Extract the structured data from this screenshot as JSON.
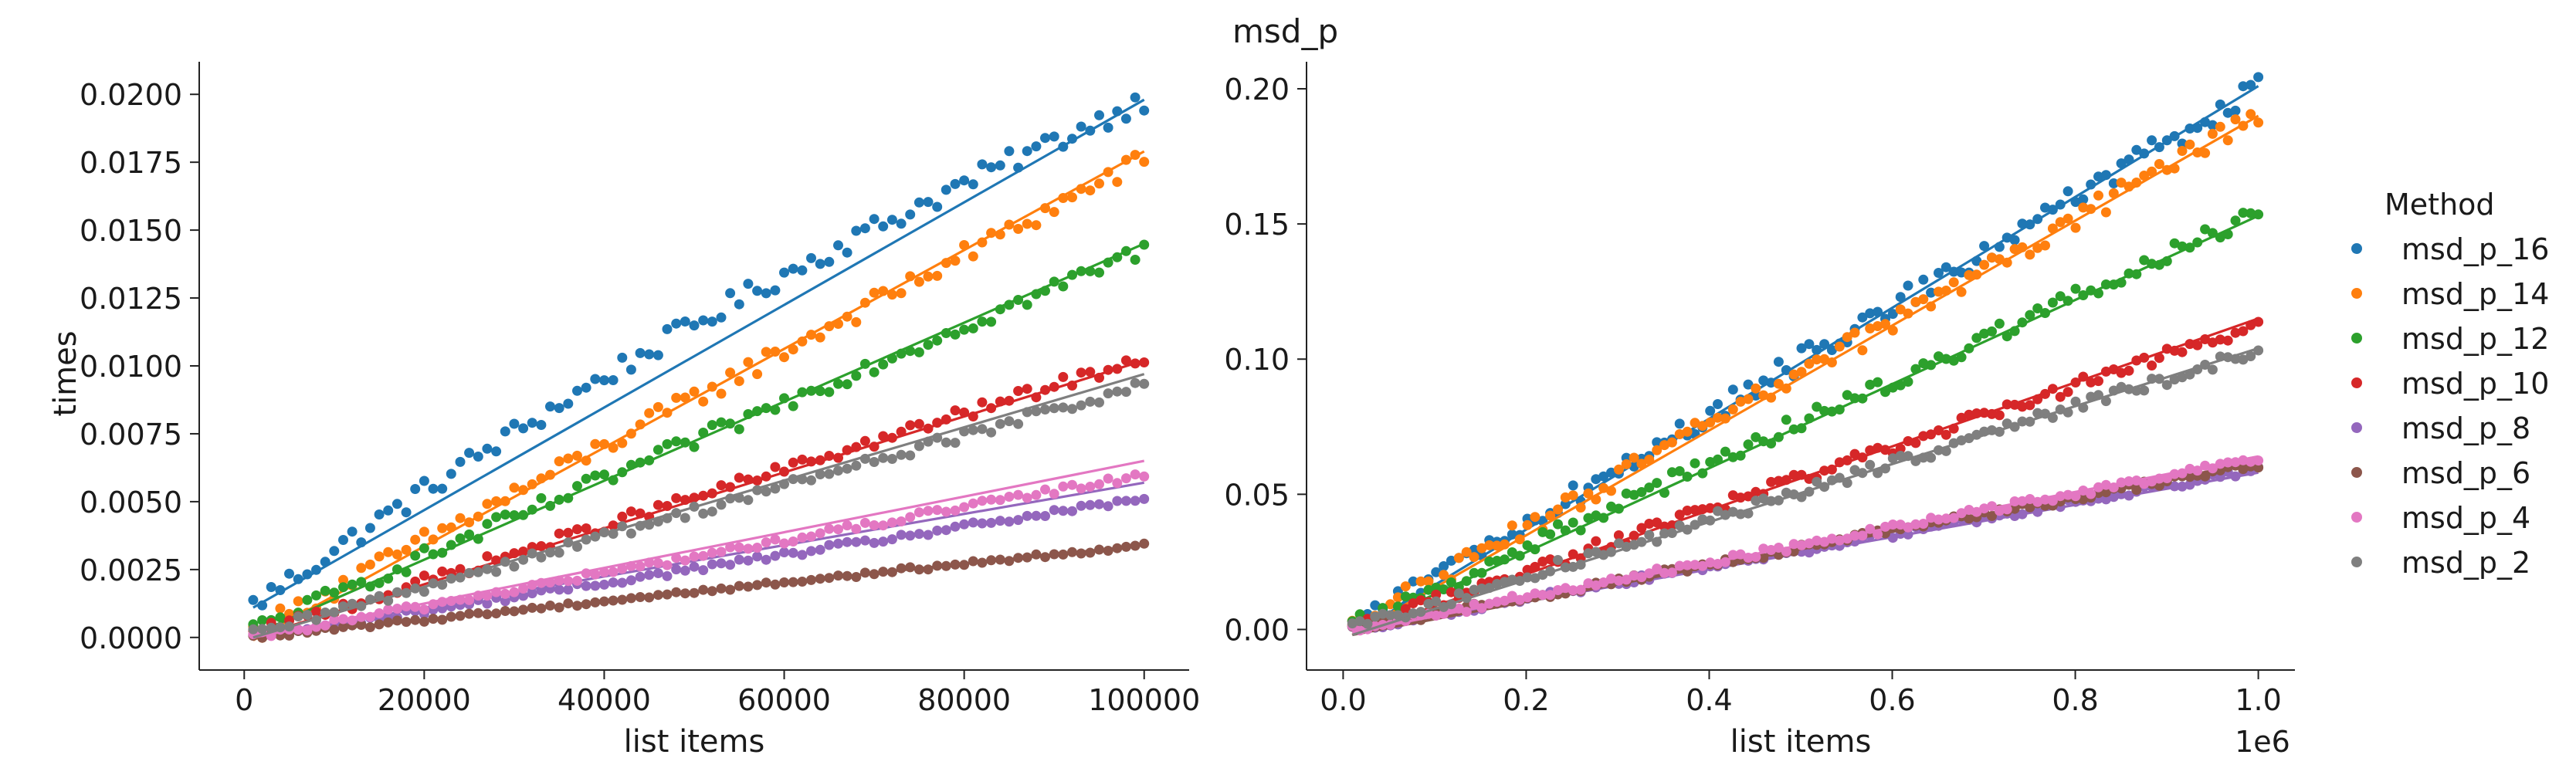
{
  "figure": {
    "title": "msd_p"
  },
  "legend": {
    "title": "Method"
  },
  "chart_data": [
    {
      "type": "scatter",
      "title": "",
      "xlabel": "list items",
      "ylabel": "times",
      "xlim": [
        -5000,
        105000
      ],
      "ylim": [
        -0.0012,
        0.0212
      ],
      "x_ticks": [
        0,
        20000,
        40000,
        60000,
        80000,
        100000
      ],
      "x_tick_labels": [
        "0",
        "20000",
        "40000",
        "60000",
        "80000",
        "100000"
      ],
      "y_ticks": [
        0,
        0.0025,
        0.005,
        0.0075,
        0.01,
        0.0125,
        0.015,
        0.0175,
        0.02
      ],
      "y_tick_labels": [
        "0.0000",
        "0.0025",
        "0.0050",
        "0.0075",
        "0.0100",
        "0.0125",
        "0.0150",
        "0.0175",
        "0.0200"
      ],
      "x_range": [
        1000,
        100000
      ],
      "grid": false,
      "series": [
        {
          "name": "msd_p_16",
          "color": "#1f77b4",
          "line_start": 0.0011,
          "line_end": 0.0198,
          "points_start": 0.0012,
          "points_end": 0.0198
        },
        {
          "name": "msd_p_14",
          "color": "#ff7f0e",
          "line_start": -0.0001,
          "line_end": 0.0179,
          "points_start": 0.0002,
          "points_end": 0.0176
        },
        {
          "name": "msd_p_12",
          "color": "#2ca02c",
          "line_start": 0.0001,
          "line_end": 0.0145,
          "points_start": 0.0003,
          "points_end": 0.0143
        },
        {
          "name": "msd_p_10",
          "color": "#d62728",
          "line_start": 0.0,
          "line_end": 0.0102,
          "points_start": 0.0001,
          "points_end": 0.0103
        },
        {
          "name": "msd_p_8",
          "color": "#9467bd",
          "line_start": 0.0,
          "line_end": 0.0057,
          "points_start": 0.0,
          "points_end": 0.0051
        },
        {
          "name": "msd_p_6",
          "color": "#8c564b",
          "line_start": 0.0,
          "line_end": 0.0034,
          "points_start": 0.0,
          "points_end": 0.0034
        },
        {
          "name": "msd_p_4",
          "color": "#e377c2",
          "line_start": 0.0,
          "line_end": 0.0065,
          "points_start": 0.0,
          "points_end": 0.006
        },
        {
          "name": "msd_p_2",
          "color": "#7f7f7f",
          "line_start": 0.0,
          "line_end": 0.0097,
          "points_start": 0.0001,
          "points_end": 0.0093
        }
      ]
    },
    {
      "type": "scatter",
      "title": "",
      "xlabel": "list items",
      "ylabel": "",
      "x_multiplier_label": "1e6",
      "xlim": [
        -0.04,
        1.04
      ],
      "ylim": [
        -0.015,
        0.21
      ],
      "x_ticks": [
        0.0,
        0.2,
        0.4,
        0.6,
        0.8,
        1.0
      ],
      "x_tick_labels": [
        "0.0",
        "0.2",
        "0.4",
        "0.6",
        "0.8",
        "1.0"
      ],
      "y_ticks": [
        0.0,
        0.05,
        0.1,
        0.15,
        0.2
      ],
      "y_tick_labels": [
        "0.00",
        "0.05",
        "0.10",
        "0.15",
        "0.20"
      ],
      "x_range": [
        0.01,
        1.0
      ],
      "grid": false,
      "series": [
        {
          "name": "msd_p_16",
          "color": "#1f77b4",
          "line_start": -0.002,
          "line_end": 0.201,
          "points_start": 0.001,
          "points_end": 0.2
        },
        {
          "name": "msd_p_14",
          "color": "#ff7f0e",
          "line_start": -0.002,
          "line_end": 0.19,
          "points_start": 0.001,
          "points_end": 0.19
        },
        {
          "name": "msd_p_12",
          "color": "#2ca02c",
          "line_start": -0.001,
          "line_end": 0.153,
          "points_start": 0.001,
          "points_end": 0.154
        },
        {
          "name": "msd_p_10",
          "color": "#d62728",
          "line_start": -0.002,
          "line_end": 0.115,
          "points_start": 0.0,
          "points_end": 0.113
        },
        {
          "name": "msd_p_8",
          "color": "#9467bd",
          "line_start": -0.001,
          "line_end": 0.058,
          "points_start": 0.0,
          "points_end": 0.059
        },
        {
          "name": "msd_p_6",
          "color": "#8c564b",
          "line_start": -0.002,
          "line_end": 0.062,
          "points_start": 0.0,
          "points_end": 0.061
        },
        {
          "name": "msd_p_4",
          "color": "#e377c2",
          "line_start": -0.001,
          "line_end": 0.064,
          "points_start": 0.0,
          "points_end": 0.063
        },
        {
          "name": "msd_p_2",
          "color": "#7f7f7f",
          "line_start": -0.002,
          "line_end": 0.104,
          "points_start": 0.0,
          "points_end": 0.103
        }
      ]
    }
  ]
}
